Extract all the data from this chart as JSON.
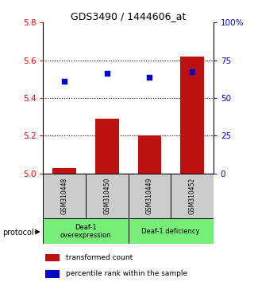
{
  "title": "GDS3490 / 1444606_at",
  "samples": [
    "GSM310448",
    "GSM310450",
    "GSM310449",
    "GSM310452"
  ],
  "bar_values": [
    5.03,
    5.29,
    5.2,
    5.62
  ],
  "bar_bottom": 5.0,
  "dot_values": [
    5.49,
    5.53,
    5.51,
    5.54
  ],
  "ylim": [
    5.0,
    5.8
  ],
  "yticks_left": [
    5.0,
    5.2,
    5.4,
    5.6,
    5.8
  ],
  "right_tick_positions": [
    5.0,
    5.2,
    5.4,
    5.6,
    5.8
  ],
  "right_tick_labels": [
    "0",
    "25",
    "50",
    "75",
    "100%"
  ],
  "bar_color": "#bb1111",
  "dot_color": "#0000cc",
  "group1_label": "Deaf-1\noverexpression",
  "group2_label": "Deaf-1 deficiency",
  "group_color": "#77ee77",
  "sample_box_color": "#cccccc",
  "legend_bar_label": "transformed count",
  "legend_dot_label": "percentile rank within the sample",
  "protocol_label": "protocol",
  "dotted_grid_values": [
    5.2,
    5.4,
    5.6
  ],
  "bar_width": 0.55
}
